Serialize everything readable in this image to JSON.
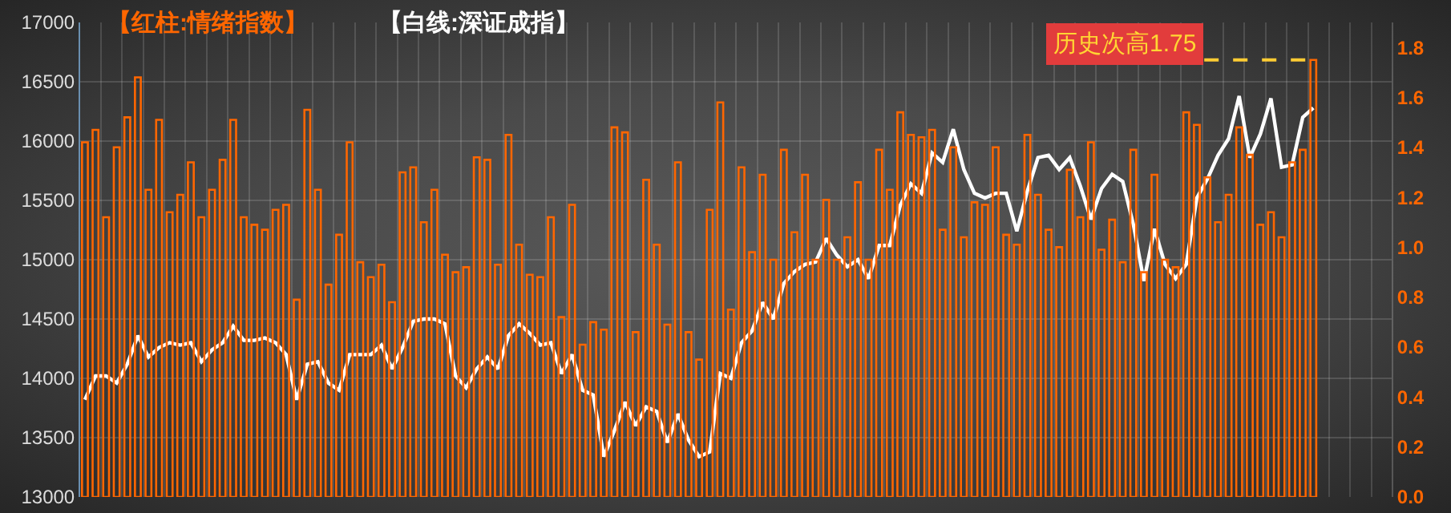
{
  "chart_data": {
    "type": "bar",
    "categories": [
      null,
      null,
      null,
      null,
      null,
      null,
      null,
      null,
      null,
      null,
      null,
      null,
      null,
      null,
      null,
      null,
      null,
      null,
      null,
      null,
      null,
      null,
      null,
      null,
      null,
      null,
      null,
      null,
      null,
      null,
      null,
      null,
      null,
      null,
      null,
      null,
      null,
      null,
      null,
      null,
      null,
      null,
      null,
      null,
      null,
      null,
      null,
      null,
      null,
      null,
      null,
      null,
      null,
      null,
      null,
      null,
      null,
      null,
      null,
      null,
      null,
      null,
      null,
      null,
      null,
      null,
      null,
      null,
      null,
      null,
      null,
      null,
      null,
      null,
      null,
      null,
      null,
      null,
      null,
      null,
      null,
      null,
      null,
      null,
      null,
      null,
      null,
      null,
      null,
      null,
      null,
      null,
      null,
      null,
      null,
      null,
      null,
      null,
      null,
      null,
      null,
      null,
      null,
      null,
      null,
      null,
      null,
      null,
      null,
      null,
      null,
      null,
      null,
      null,
      null,
      null,
      null
    ],
    "series": [
      {
        "name": "【红柱:情绪指数】",
        "axis": "y2",
        "color": "#ff6600",
        "values": [
          1.42,
          1.47,
          1.12,
          1.4,
          1.52,
          1.68,
          1.23,
          1.51,
          1.14,
          1.21,
          1.34,
          1.12,
          1.23,
          1.35,
          1.51,
          1.12,
          1.09,
          1.07,
          1.15,
          1.17,
          0.79,
          1.55,
          1.23,
          0.85,
          1.05,
          1.42,
          0.94,
          0.88,
          0.93,
          0.78,
          1.3,
          1.32,
          1.1,
          1.23,
          0.97,
          0.9,
          0.92,
          1.36,
          1.35,
          0.93,
          1.45,
          1.01,
          0.89,
          0.88,
          1.12,
          0.72,
          1.17,
          0.61,
          0.7,
          0.67,
          1.48,
          1.46,
          0.66,
          1.27,
          1.01,
          0.69,
          1.34,
          0.66,
          0.55,
          1.15,
          1.58,
          0.75,
          1.32,
          0.98,
          1.29,
          0.95,
          1.39,
          1.06,
          1.29,
          0.95,
          1.19,
          0.95,
          1.04,
          1.26,
          0.95,
          1.39,
          1.23,
          1.54,
          1.45,
          1.44,
          1.47,
          1.07,
          1.4,
          1.04,
          1.18,
          1.17,
          1.4,
          1.05,
          1.01,
          1.45,
          1.21,
          1.07,
          1.0,
          1.31,
          1.12,
          1.42,
          0.99,
          1.11,
          0.94,
          1.39,
          0.9,
          1.29,
          0.95,
          0.92,
          1.54,
          1.49,
          1.28,
          1.1,
          1.21,
          1.48,
          1.37,
          1.09,
          1.14,
          1.04,
          1.34,
          1.39,
          1.75
        ]
      },
      {
        "name": "【白线:深证成指】",
        "type": "line",
        "color": "#ffffff",
        "values": [
          13820,
          14020,
          14020,
          13960,
          14120,
          14360,
          14180,
          14260,
          14300,
          14280,
          14300,
          14140,
          14240,
          14300,
          14440,
          14320,
          14320,
          14340,
          14300,
          14200,
          13820,
          14120,
          14140,
          13960,
          13900,
          14200,
          14200,
          14200,
          14280,
          14080,
          14260,
          14480,
          14500,
          14500,
          14460,
          14020,
          13920,
          14080,
          14180,
          14080,
          14360,
          14460,
          14380,
          14280,
          14300,
          14040,
          14200,
          13900,
          13860,
          13340,
          13560,
          13800,
          13600,
          13760,
          13720,
          13460,
          13700,
          13480,
          13340,
          13380,
          14040,
          14000,
          14300,
          14400,
          14640,
          14500,
          14800,
          14900,
          14960,
          14980,
          15180,
          15040,
          14940,
          15000,
          14840,
          15120,
          15120,
          15460,
          15640,
          15560,
          15900,
          15820,
          16100,
          15760,
          15560,
          15520,
          15560,
          15560,
          15240,
          15580,
          15860,
          15880,
          15760,
          15860,
          15620,
          15340,
          15600,
          15720,
          15660,
          15300,
          14820,
          15260,
          14960,
          14840,
          14960,
          15520,
          15680,
          15880,
          16020,
          16380,
          15860,
          16060,
          16360,
          15780,
          15800,
          16200,
          16280
        ]
      }
    ],
    "ylim": [
      13000,
      17000
    ],
    "yticks": [
      13000,
      13500,
      14000,
      14500,
      15000,
      15500,
      16000,
      16500,
      17000
    ],
    "y2lim": [
      0,
      1.9
    ],
    "y2ticks": [
      {
        "value": 0,
        "label": "0.0"
      },
      0.2,
      0.4,
      0.6,
      0.8,
      {
        "value": 1,
        "label": "1.0"
      },
      1.2,
      1.4,
      1.6,
      1.8
    ],
    "ref_lines": [
      {
        "axis": "y2",
        "value": 1.75,
        "color": "#ffcc33",
        "line_style": "dashed"
      }
    ],
    "annotations": [
      "历史次高1.75"
    ],
    "grid": true,
    "marker": "none"
  }
}
